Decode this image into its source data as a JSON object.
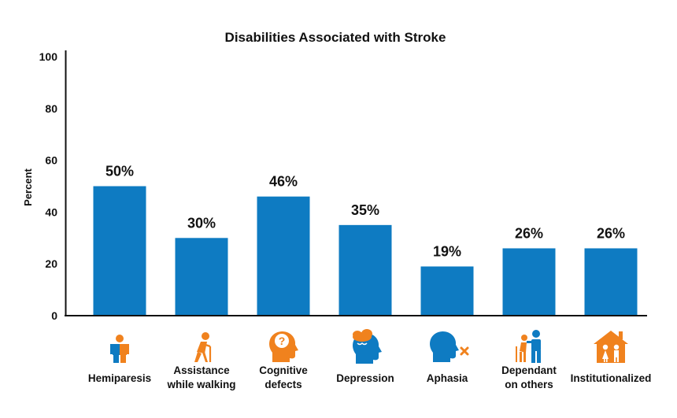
{
  "chart_data": {
    "type": "bar",
    "title": "Disabilities Associated with Stroke",
    "xlabel": "",
    "ylabel": "Percent",
    "ylim": [
      0,
      100
    ],
    "yticks": [
      0,
      20,
      40,
      60,
      80,
      100
    ],
    "grid": false,
    "categories": [
      [
        "Hemiparesis"
      ],
      [
        "Assistance",
        "while walking"
      ],
      [
        "Cognitive",
        "defects"
      ],
      [
        "Depression"
      ],
      [
        "Aphasia"
      ],
      [
        "Dependant",
        "on others"
      ],
      [
        "Institutionalized"
      ]
    ],
    "values": [
      50,
      30,
      46,
      35,
      19,
      26,
      26
    ],
    "data_labels": [
      "50%",
      "30%",
      "46%",
      "35%",
      "19%",
      "26%",
      "26%"
    ],
    "icons": [
      "hemiparesis-icon",
      "walking-cane-icon",
      "cognitive-question-head-icon",
      "depression-head-cloud-icon",
      "aphasia-head-x-icon",
      "dependant-people-icon",
      "institution-house-icon"
    ],
    "colors": {
      "bar": "#0e7bc2",
      "accent": "#f0821e",
      "axis": "#111111"
    }
  }
}
